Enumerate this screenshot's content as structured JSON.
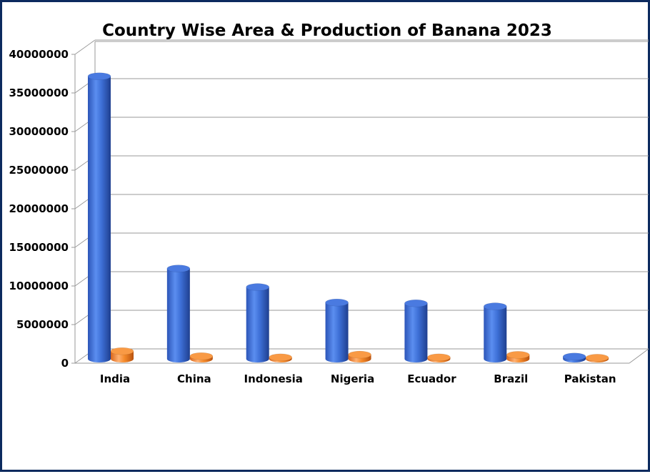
{
  "chart_data": {
    "type": "bar",
    "title": "Country Wise Area & Production of Banana 2023",
    "xlabel": "",
    "ylabel": "",
    "ylim": [
      0,
      40000000
    ],
    "yticks": [
      0,
      5000000,
      10000000,
      15000000,
      20000000,
      25000000,
      30000000,
      35000000,
      40000000
    ],
    "ytick_labels": [
      "0",
      "5000000",
      "10000000",
      "15000000",
      "20000000",
      "25000000",
      "30000000",
      "35000000",
      "40000000"
    ],
    "grid": true,
    "style": "3d-cylinder",
    "categories": [
      "India",
      "China",
      "Indonesia",
      "Nigeria",
      "Ecuador",
      "Brazil",
      "Pakistan"
    ],
    "series": [
      {
        "color": "#3d6fd6",
        "values": [
          36600000,
          11700000,
          9300000,
          7300000,
          7200000,
          6800000,
          300000
        ]
      },
      {
        "color": "#f58a2a",
        "values": [
          1000000,
          350000,
          200000,
          550000,
          200000,
          520000,
          150000
        ]
      }
    ]
  }
}
